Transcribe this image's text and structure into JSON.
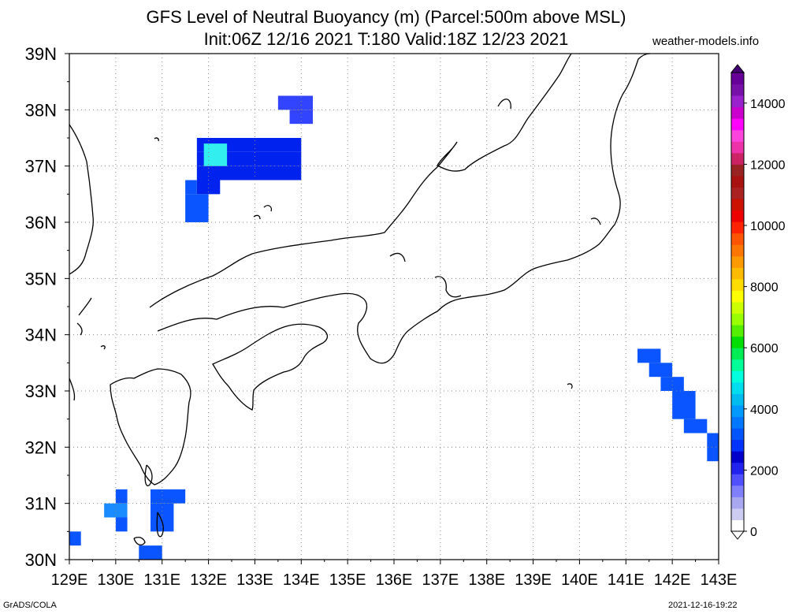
{
  "title_line1": "GFS Level of Neutral Buoyancy (m) (Parcel:500m above MSL)",
  "title_line2": "Init:06Z 12/16 2021 T:180 Valid:18Z 12/23 2021",
  "site": "weather-models.info",
  "footer_left": "GrADS/COLA",
  "footer_right": "2021-12-16-19:22",
  "map": {
    "lon_range": [
      129,
      143
    ],
    "lat_range": [
      30,
      39
    ],
    "lon_labels": [
      "129E",
      "130E",
      "131E",
      "132E",
      "133E",
      "134E",
      "135E",
      "136E",
      "137E",
      "138E",
      "139E",
      "140E",
      "141E",
      "142E",
      "143E"
    ],
    "lat_labels": [
      "30N",
      "31N",
      "32N",
      "33N",
      "34N",
      "35N",
      "36N",
      "37N",
      "38N",
      "39N"
    ]
  },
  "colorbar": {
    "labels": [
      "0",
      "2000",
      "4000",
      "6000",
      "8000",
      "10000",
      "12000",
      "14000"
    ],
    "colors": [
      "#ffffff",
      "#ccccf2",
      "#a8a8f0",
      "#8080ff",
      "#5050ff",
      "#2222ee",
      "#0000cc",
      "#0033ff",
      "#0055ff",
      "#0077ff",
      "#0099ff",
      "#00bbee",
      "#00ddee",
      "#00ffdd",
      "#00ff99",
      "#00ee55",
      "#00dd00",
      "#55ee00",
      "#99ff00",
      "#ccff00",
      "#ffff00",
      "#ffdd00",
      "#ffbb00",
      "#ff9900",
      "#ff7700",
      "#ff5500",
      "#ff2200",
      "#ee0000",
      "#cc1100",
      "#aa2222",
      "#aa1111",
      "#992222",
      "#cc2266",
      "#ee33aa",
      "#ff44dd",
      "#ff00ff",
      "#cc00cc",
      "#9922cc",
      "#7711aa",
      "#660099"
    ]
  },
  "lnb_cells": [
    {
      "lon": 133.5,
      "lat": 38.0,
      "w": 0.75,
      "h": 0.25,
      "v": 1300
    },
    {
      "lon": 133.75,
      "lat": 37.75,
      "w": 0.5,
      "h": 0.25,
      "v": 1400
    },
    {
      "lon": 131.75,
      "lat": 37.25,
      "w": 2.25,
      "h": 0.25,
      "v": 1700
    },
    {
      "lon": 131.75,
      "lat": 37.0,
      "w": 2.25,
      "h": 0.25,
      "v": 1700
    },
    {
      "lon": 131.75,
      "lat": 36.75,
      "w": 2.25,
      "h": 0.25,
      "v": 1700
    },
    {
      "lon": 131.75,
      "lat": 36.5,
      "w": 0.5,
      "h": 0.25,
      "v": 1700
    },
    {
      "lon": 131.5,
      "lat": 36.5,
      "w": 0.25,
      "h": 0.25,
      "v": 2400
    },
    {
      "lon": 131.5,
      "lat": 36.0,
      "w": 0.5,
      "h": 0.5,
      "v": 2400
    },
    {
      "lon": 131.9,
      "lat": 37.0,
      "w": 0.5,
      "h": 0.4,
      "v": 3600
    },
    {
      "lon": 141.25,
      "lat": 33.5,
      "w": 0.5,
      "h": 0.25,
      "v": 2300
    },
    {
      "lon": 141.5,
      "lat": 33.25,
      "w": 0.5,
      "h": 0.25,
      "v": 2300
    },
    {
      "lon": 141.75,
      "lat": 33.0,
      "w": 0.5,
      "h": 0.25,
      "v": 2300
    },
    {
      "lon": 142.0,
      "lat": 32.5,
      "w": 0.5,
      "h": 0.5,
      "v": 2300
    },
    {
      "lon": 142.25,
      "lat": 32.25,
      "w": 0.5,
      "h": 0.25,
      "v": 2300
    },
    {
      "lon": 142.75,
      "lat": 31.75,
      "w": 0.25,
      "h": 0.5,
      "v": 2300
    },
    {
      "lon": 130.0,
      "lat": 31.0,
      "w": 0.25,
      "h": 0.25,
      "v": 2400
    },
    {
      "lon": 129.75,
      "lat": 30.75,
      "w": 0.5,
      "h": 0.25,
      "v": 2600
    },
    {
      "lon": 130.0,
      "lat": 30.5,
      "w": 0.25,
      "h": 0.25,
      "v": 2400
    },
    {
      "lon": 130.75,
      "lat": 31.0,
      "w": 0.75,
      "h": 0.25,
      "v": 2300
    },
    {
      "lon": 130.75,
      "lat": 30.5,
      "w": 0.5,
      "h": 0.5,
      "v": 2300
    },
    {
      "lon": 130.5,
      "lat": 30.0,
      "w": 0.5,
      "h": 0.25,
      "v": 2300
    },
    {
      "lon": 129.0,
      "lat": 30.25,
      "w": 0.25,
      "h": 0.25,
      "v": 2300
    }
  ]
}
